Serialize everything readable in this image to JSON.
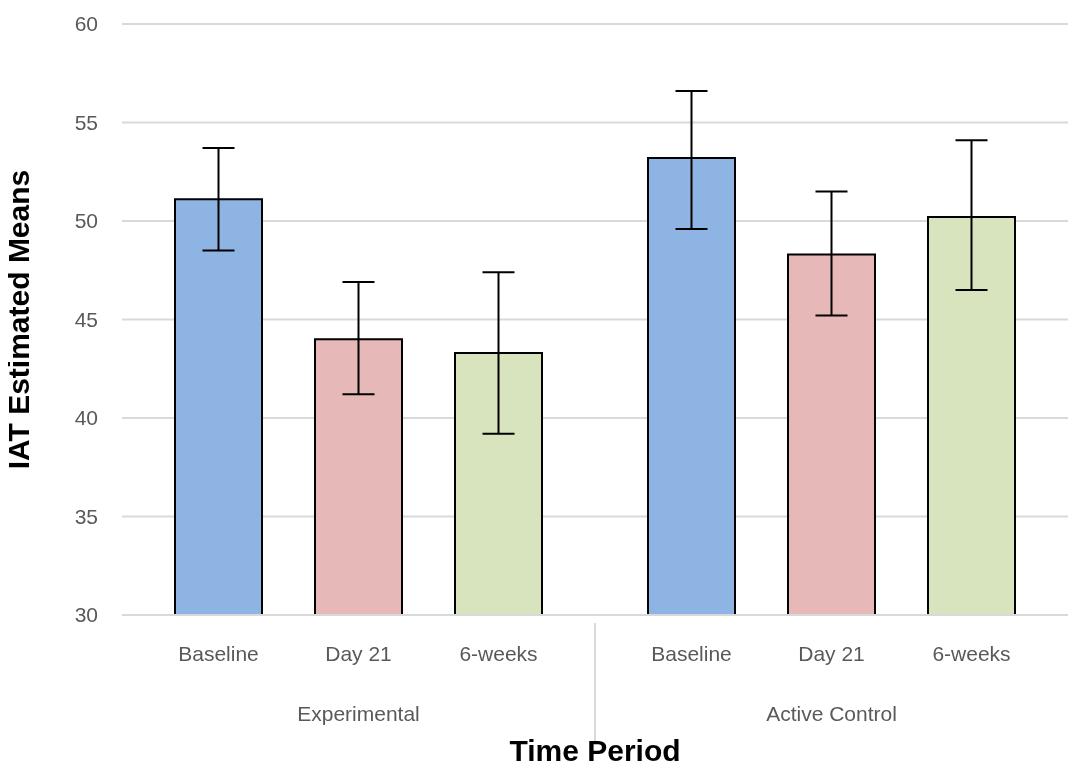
{
  "chart_data": {
    "type": "bar",
    "xlabel": "Time Period",
    "ylabel": "IAT Estimated Means",
    "categories": [
      "Experimental",
      "Active Control"
    ],
    "series": [
      {
        "name": "Baseline",
        "color": "#8eb4e3",
        "values": [
          51.1,
          53.2
        ],
        "errors": [
          [
            48.5,
            53.7
          ],
          [
            49.6,
            56.6
          ]
        ]
      },
      {
        "name": "Day 21",
        "color": "#e6b8b7",
        "values": [
          44.0,
          48.3
        ],
        "errors": [
          [
            41.2,
            46.9
          ],
          [
            45.2,
            51.5
          ]
        ]
      },
      {
        "name": "6-weeks",
        "color": "#d7e4bd",
        "values": [
          43.3,
          50.2
        ],
        "errors": [
          [
            39.2,
            47.4
          ],
          [
            46.5,
            54.1
          ]
        ]
      }
    ],
    "ylim": [
      30,
      60
    ],
    "yticks": [
      30,
      35,
      40,
      45,
      50,
      55,
      60
    ],
    "grid": "y"
  }
}
